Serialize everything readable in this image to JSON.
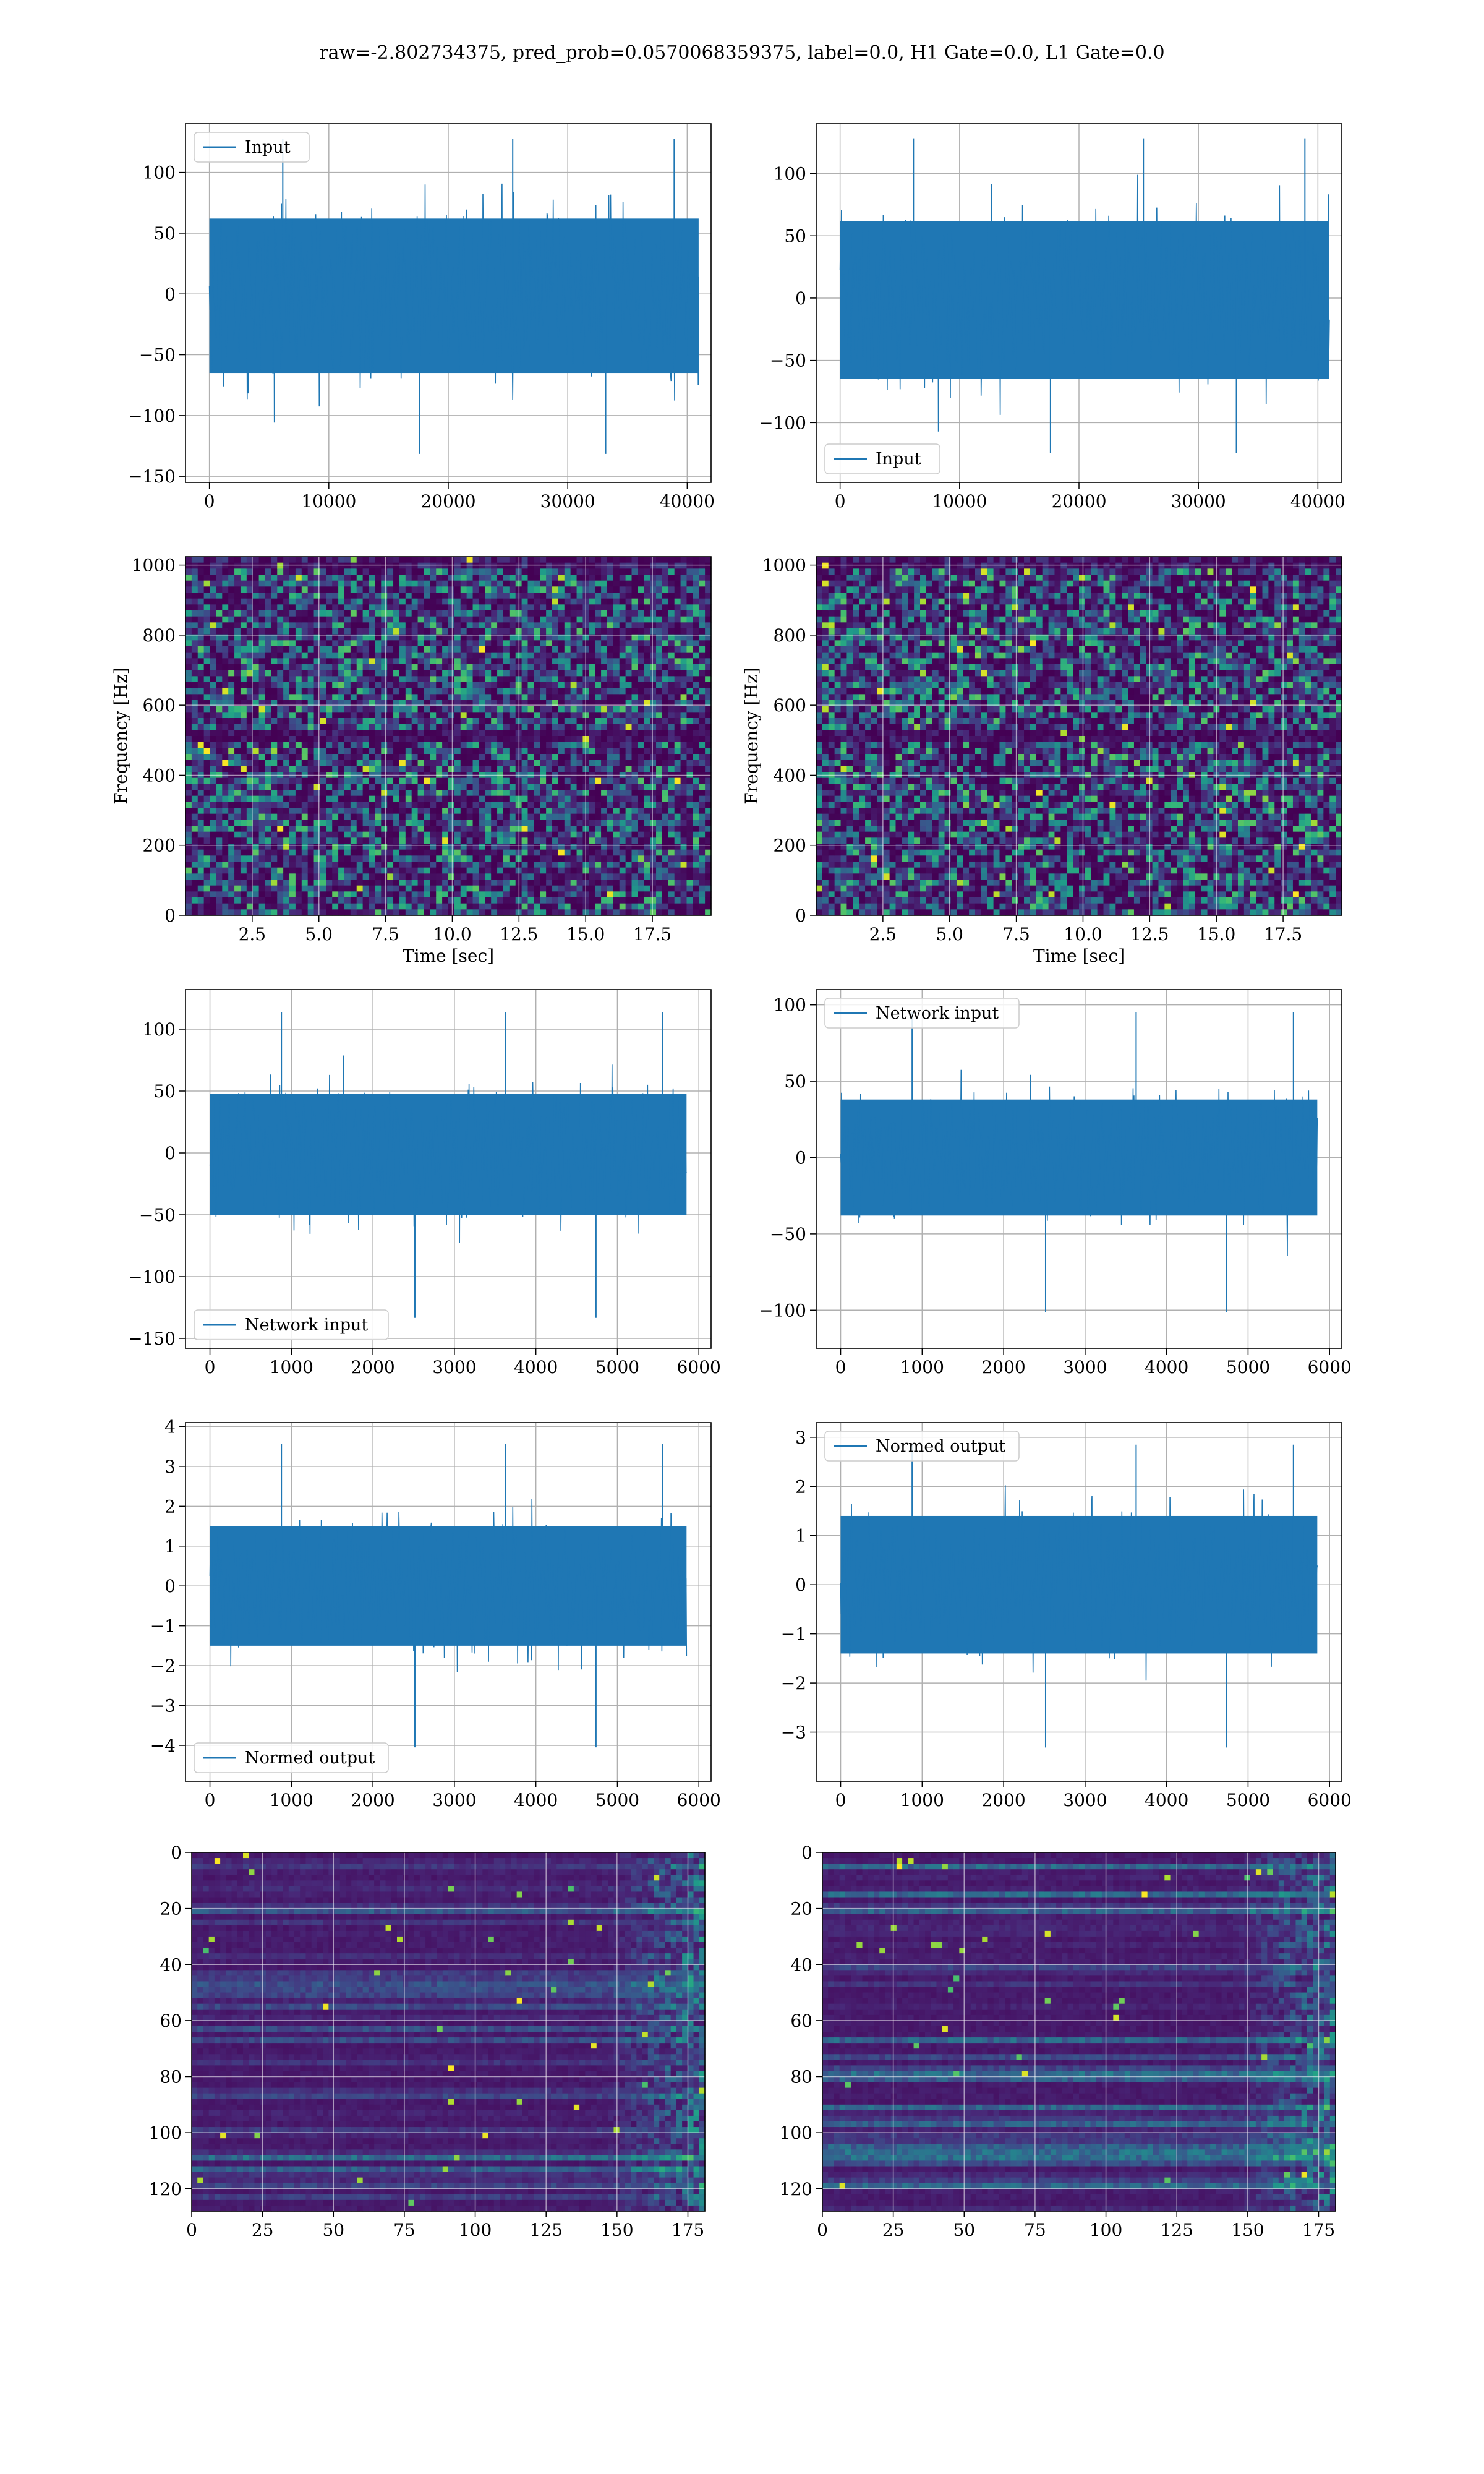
{
  "suptitle": "raw=-2.802734375, pred_prob=0.0570068359375, label=0.0, H1 Gate=0.0, L1 Gate=0.0",
  "colors": {
    "line": "#1f77b4",
    "grid": "#b0b0b0",
    "viridis_dark": "#440154",
    "viridis_bright": "#fde725"
  },
  "chart_data": [
    {
      "type": "line",
      "id": "input-h1",
      "legend": "Input",
      "legend_loc": "upper left",
      "xlim": [
        -2000,
        42000
      ],
      "ylim": [
        -155,
        140
      ],
      "xticks": [
        0,
        10000,
        20000,
        30000,
        40000
      ],
      "yticks": [
        -150,
        -100,
        -50,
        0,
        50,
        100
      ],
      "series": [
        {
          "n_samples": 40960,
          "band": [
            -65,
            62
          ],
          "max": 134,
          "min": -143
        }
      ]
    },
    {
      "type": "line",
      "id": "input-l1",
      "legend": "Input",
      "legend_loc": "lower left",
      "xlim": [
        -2000,
        42000
      ],
      "ylim": [
        -148,
        140
      ],
      "xticks": [
        0,
        10000,
        20000,
        30000,
        40000
      ],
      "yticks": [
        -100,
        -50,
        0,
        50,
        100
      ],
      "series": [
        {
          "n_samples": 40960,
          "band": [
            -65,
            62
          ],
          "max": 135,
          "min": -135
        }
      ]
    },
    {
      "type": "heatmap",
      "id": "spectrogram-h1",
      "xlabel": "Time [sec]",
      "ylabel": "Frequency [Hz]",
      "xlim": [
        0,
        19.7
      ],
      "ylim": [
        0,
        1024
      ],
      "xticks": [
        "2.5",
        "5.0",
        "7.5",
        "10.0",
        "12.5",
        "15.0",
        "17.5"
      ],
      "yticks": [
        0,
        200,
        400,
        600,
        800,
        1000
      ],
      "colormap": "viridis"
    },
    {
      "type": "heatmap",
      "id": "spectrogram-l1",
      "xlabel": "Time [sec]",
      "ylabel": "Frequency [Hz]",
      "xlim": [
        0,
        19.7
      ],
      "ylim": [
        0,
        1024
      ],
      "xticks": [
        "2.5",
        "5.0",
        "7.5",
        "10.0",
        "12.5",
        "15.0",
        "17.5"
      ],
      "yticks": [
        0,
        200,
        400,
        600,
        800,
        1000
      ],
      "colormap": "viridis"
    },
    {
      "type": "line",
      "id": "network-input-h1",
      "legend": "Network input",
      "legend_loc": "lower left",
      "xlim": [
        -300,
        6150
      ],
      "ylim": [
        -158,
        132
      ],
      "xticks": [
        0,
        1000,
        2000,
        3000,
        4000,
        5000,
        6000
      ],
      "yticks": [
        -150,
        -100,
        -50,
        0,
        50,
        100
      ],
      "series": [
        {
          "n_samples": 5850,
          "band": [
            -50,
            48
          ],
          "max": 120,
          "min": -145
        }
      ]
    },
    {
      "type": "line",
      "id": "network-input-l1",
      "legend": "Network input",
      "legend_loc": "upper left",
      "xlim": [
        -300,
        6150
      ],
      "ylim": [
        -125,
        110
      ],
      "xticks": [
        0,
        1000,
        2000,
        3000,
        4000,
        5000,
        6000
      ],
      "yticks": [
        -100,
        -50,
        0,
        50,
        100
      ],
      "series": [
        {
          "n_samples": 5850,
          "band": [
            -38,
            38
          ],
          "max": 100,
          "min": -110
        }
      ]
    },
    {
      "type": "line",
      "id": "normed-output-h1",
      "legend": "Normed output",
      "legend_loc": "lower left",
      "xlim": [
        -300,
        6150
      ],
      "ylim": [
        -4.9,
        4.1
      ],
      "xticks": [
        0,
        1000,
        2000,
        3000,
        4000,
        5000,
        6000
      ],
      "yticks": [
        -4,
        -3,
        -2,
        -1,
        0,
        1,
        2,
        3,
        4
      ],
      "series": [
        {
          "n_samples": 5850,
          "band": [
            -1.5,
            1.5
          ],
          "max": 3.75,
          "min": -4.4
        }
      ]
    },
    {
      "type": "line",
      "id": "normed-output-l1",
      "legend": "Normed output",
      "legend_loc": "upper left",
      "xlim": [
        -300,
        6150
      ],
      "ylim": [
        -4.0,
        3.3
      ],
      "xticks": [
        0,
        1000,
        2000,
        3000,
        4000,
        5000,
        6000
      ],
      "yticks": [
        -3,
        -2,
        -1,
        0,
        1,
        2,
        3
      ],
      "series": [
        {
          "n_samples": 5850,
          "band": [
            -1.4,
            1.4
          ],
          "max": 3.0,
          "min": -3.6
        }
      ]
    },
    {
      "type": "heatmap",
      "id": "features-h1",
      "colormap": "viridis",
      "xlim": [
        0,
        181
      ],
      "ylim": [
        128,
        0
      ],
      "xticks": [
        0,
        25,
        50,
        75,
        100,
        125,
        150,
        175
      ],
      "yticks": [
        0,
        20,
        40,
        60,
        80,
        100,
        120
      ]
    },
    {
      "type": "heatmap",
      "id": "features-l1",
      "colormap": "viridis",
      "xlim": [
        0,
        181
      ],
      "ylim": [
        128,
        0
      ],
      "xticks": [
        0,
        25,
        50,
        75,
        100,
        125,
        150,
        175
      ],
      "yticks": [
        0,
        20,
        40,
        60,
        80,
        100,
        120
      ]
    }
  ]
}
